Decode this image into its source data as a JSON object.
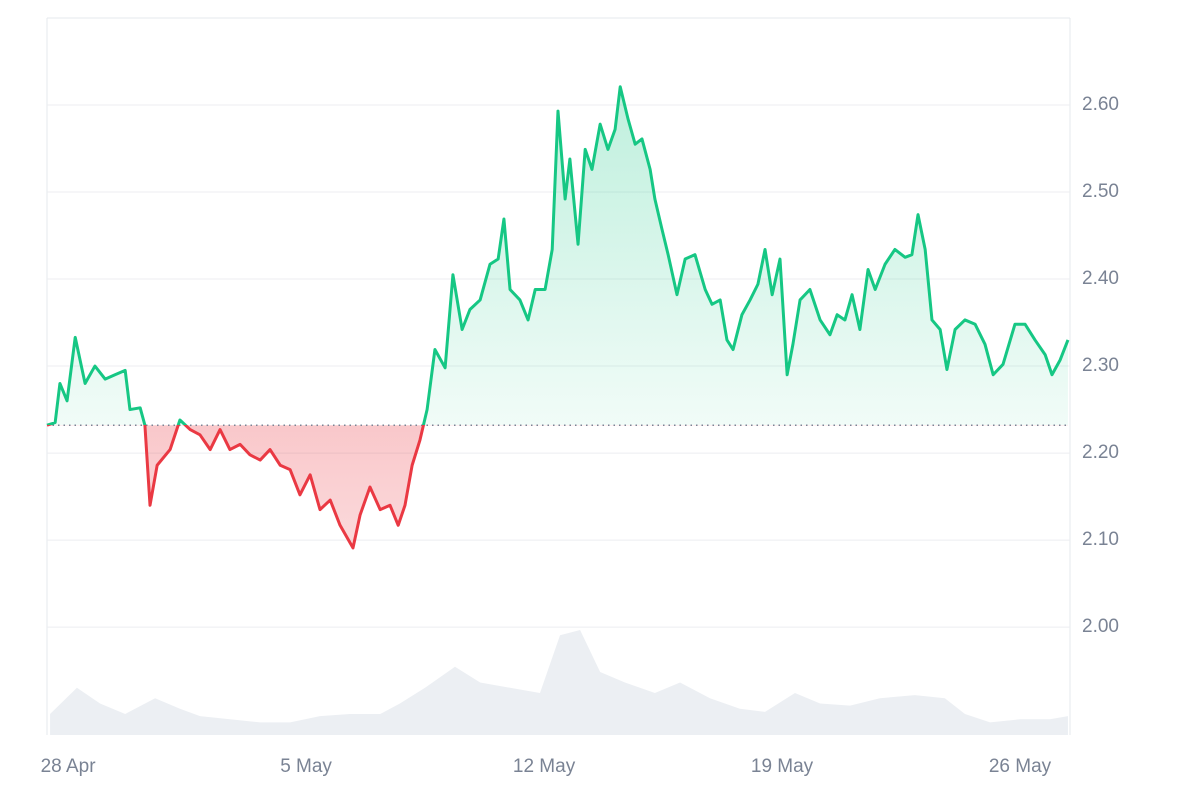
{
  "chart_data": {
    "type": "line",
    "x": [
      -0.62,
      -0.38,
      -0.24,
      -0.03,
      0.21,
      0.5,
      0.79,
      1.09,
      1.38,
      1.68,
      1.82,
      2.12,
      2.26,
      2.41,
      2.62,
      3.0,
      3.29,
      3.59,
      3.88,
      4.18,
      4.47,
      4.76,
      5.06,
      5.35,
      5.65,
      5.94,
      6.24,
      6.53,
      6.82,
      7.12,
      7.41,
      7.71,
      8.0,
      8.38,
      8.59,
      8.88,
      9.18,
      9.47,
      9.71,
      9.91,
      10.12,
      10.35,
      10.56,
      10.79,
      11.09,
      11.32,
      11.59,
      11.82,
      12.12,
      12.41,
      12.65,
      12.82,
      13.0,
      13.29,
      13.53,
      13.74,
      14.03,
      14.24,
      14.41,
      14.62,
      14.76,
      15.0,
      15.21,
      15.41,
      15.65,
      15.88,
      16.09,
      16.24,
      16.47,
      16.68,
      16.88,
      17.12,
      17.26,
      17.47,
      17.65,
      17.91,
      18.15,
      18.44,
      18.74,
      18.94,
      19.18,
      19.38,
      19.56,
      19.82,
      20.06,
      20.29,
      20.5,
      20.71,
      20.94,
      21.15,
      21.32,
      21.53,
      21.82,
      22.12,
      22.41,
      22.62,
      22.85,
      23.06,
      23.29,
      23.53,
      23.74,
      24.03,
      24.32,
      24.62,
      24.82,
      25.0,
      25.21,
      25.41,
      25.65,
      25.85,
      26.09,
      26.38,
      26.68,
      26.97,
      27.21,
      27.5,
      27.85,
      28.15,
      28.44,
      28.74,
      28.94,
      29.18,
      29.41
    ],
    "values": [
      2.232,
      2.235,
      2.28,
      2.26,
      2.333,
      2.28,
      2.3,
      2.285,
      2.29,
      2.295,
      2.25,
      2.252,
      2.232,
      2.14,
      2.186,
      2.204,
      2.238,
      2.227,
      2.221,
      2.204,
      2.227,
      2.204,
      2.21,
      2.198,
      2.192,
      2.204,
      2.186,
      2.181,
      2.152,
      2.175,
      2.135,
      2.146,
      2.117,
      2.091,
      2.129,
      2.161,
      2.135,
      2.14,
      2.117,
      2.14,
      2.186,
      2.215,
      2.25,
      2.319,
      2.298,
      2.405,
      2.342,
      2.365,
      2.376,
      2.417,
      2.423,
      2.469,
      2.388,
      2.376,
      2.353,
      2.388,
      2.388,
      2.434,
      2.593,
      2.492,
      2.538,
      2.44,
      2.549,
      2.526,
      2.578,
      2.549,
      2.572,
      2.621,
      2.584,
      2.555,
      2.561,
      2.526,
      2.492,
      2.457,
      2.428,
      2.382,
      2.423,
      2.428,
      2.388,
      2.371,
      2.376,
      2.33,
      2.319,
      2.359,
      2.376,
      2.394,
      2.434,
      2.382,
      2.423,
      2.29,
      2.325,
      2.376,
      2.388,
      2.353,
      2.336,
      2.359,
      2.353,
      2.382,
      2.342,
      2.411,
      2.388,
      2.417,
      2.434,
      2.425,
      2.428,
      2.474,
      2.434,
      2.353,
      2.342,
      2.296,
      2.342,
      2.353,
      2.348,
      2.325,
      2.29,
      2.302,
      2.348,
      2.348,
      2.33,
      2.313,
      2.29,
      2.307,
      2.33
    ],
    "baseline": 2.232,
    "up_color": "#16c784",
    "down_color": "#ea3943",
    "volume": {
      "color": "#eceff3",
      "x": [
        -0.53,
        0.26,
        0.94,
        1.68,
        2.56,
        3.29,
        3.88,
        4.76,
        5.65,
        6.53,
        7.41,
        8.29,
        9.18,
        9.76,
        10.5,
        11.38,
        12.12,
        13.0,
        13.88,
        14.47,
        15.06,
        15.65,
        16.38,
        17.26,
        18.0,
        18.88,
        19.76,
        20.5,
        21.38,
        22.12,
        23.0,
        23.88,
        24.91,
        25.79,
        26.38,
        27.12,
        28.0,
        28.88,
        29.41
      ],
      "values": [
        20,
        45,
        30,
        20,
        35,
        25,
        18,
        15,
        12,
        12,
        18,
        20,
        20,
        30,
        45,
        65,
        50,
        45,
        40,
        95,
        100,
        60,
        50,
        40,
        50,
        35,
        25,
        22,
        40,
        30,
        28,
        35,
        38,
        35,
        20,
        12,
        15,
        15,
        18
      ]
    },
    "xlim": [
      -0.62,
      29.47
    ],
    "xticks": [
      {
        "value": 0,
        "label": "28 Apr"
      },
      {
        "value": 7,
        "label": "5 May"
      },
      {
        "value": 14,
        "label": "12 May"
      },
      {
        "value": 21,
        "label": "19 May"
      },
      {
        "value": 28,
        "label": "26 May"
      }
    ],
    "ylim": [
      1.876,
      2.7
    ],
    "yticks": [
      {
        "value": 2.0,
        "label": "2.00"
      },
      {
        "value": 2.1,
        "label": "2.10"
      },
      {
        "value": 2.2,
        "label": "2.20"
      },
      {
        "value": 2.3,
        "label": "2.30"
      },
      {
        "value": 2.4,
        "label": "2.40"
      },
      {
        "value": 2.5,
        "label": "2.50"
      },
      {
        "value": 2.6,
        "label": "2.60"
      }
    ],
    "grid": true
  }
}
